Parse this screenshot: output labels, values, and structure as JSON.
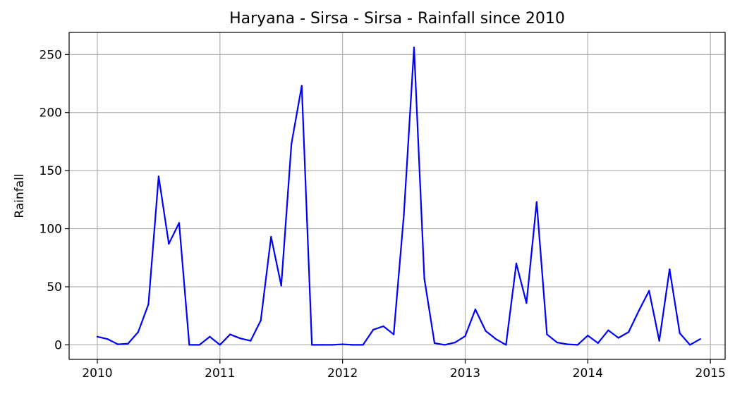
{
  "chart_data": {
    "type": "line",
    "title": "Haryana - Sirsa - Sirsa - Rainfall since 2010",
    "xlabel": "",
    "ylabel": "Rainfall",
    "xlim": [
      2009.77,
      2015.12
    ],
    "ylim": [
      -12.5,
      269
    ],
    "grid": true,
    "legend": "none",
    "x_ticks": [
      {
        "value": 2010,
        "label": "2010"
      },
      {
        "value": 2011,
        "label": "2011"
      },
      {
        "value": 2012,
        "label": "2012"
      },
      {
        "value": 2013,
        "label": "2013"
      },
      {
        "value": 2014,
        "label": "2014"
      },
      {
        "value": 2015,
        "label": "2015"
      }
    ],
    "y_ticks": [
      {
        "value": 0,
        "label": "0"
      },
      {
        "value": 50,
        "label": "50"
      },
      {
        "value": 100,
        "label": "100"
      },
      {
        "value": 150,
        "label": "150"
      },
      {
        "value": 200,
        "label": "200"
      },
      {
        "value": 250,
        "label": "250"
      }
    ],
    "series": [
      {
        "color": "#0000ff",
        "x": [
          2010.0,
          2010.083,
          2010.167,
          2010.25,
          2010.333,
          2010.417,
          2010.5,
          2010.583,
          2010.667,
          2010.75,
          2010.833,
          2010.917,
          2011.0,
          2011.083,
          2011.167,
          2011.25,
          2011.333,
          2011.417,
          2011.5,
          2011.583,
          2011.667,
          2011.75,
          2011.833,
          2011.917,
          2012.0,
          2012.083,
          2012.167,
          2012.25,
          2012.333,
          2012.417,
          2012.5,
          2012.583,
          2012.667,
          2012.75,
          2012.833,
          2012.917,
          2013.0,
          2013.083,
          2013.167,
          2013.25,
          2013.333,
          2013.417,
          2013.5,
          2013.583,
          2013.667,
          2013.75,
          2013.833,
          2013.917,
          2014.0,
          2014.083,
          2014.167,
          2014.25,
          2014.333,
          2014.417,
          2014.5,
          2014.583,
          2014.667,
          2014.75,
          2014.833,
          2014.917
        ],
        "y": [
          7,
          5,
          0.5,
          1,
          11,
          35,
          145,
          87,
          105,
          0,
          0,
          7,
          0,
          9,
          5.5,
          3.5,
          21,
          93,
          51,
          173,
          223,
          0,
          0,
          0,
          0.5,
          0,
          0,
          13,
          16,
          9,
          112,
          256,
          57,
          1.5,
          0,
          2,
          7.5,
          30.5,
          12,
          5,
          0,
          70,
          36,
          123,
          9,
          2,
          0.5,
          0,
          8,
          1.5,
          12.5,
          6,
          11,
          29.5,
          46.5,
          3.5,
          65,
          10,
          0,
          5
        ]
      }
    ]
  }
}
